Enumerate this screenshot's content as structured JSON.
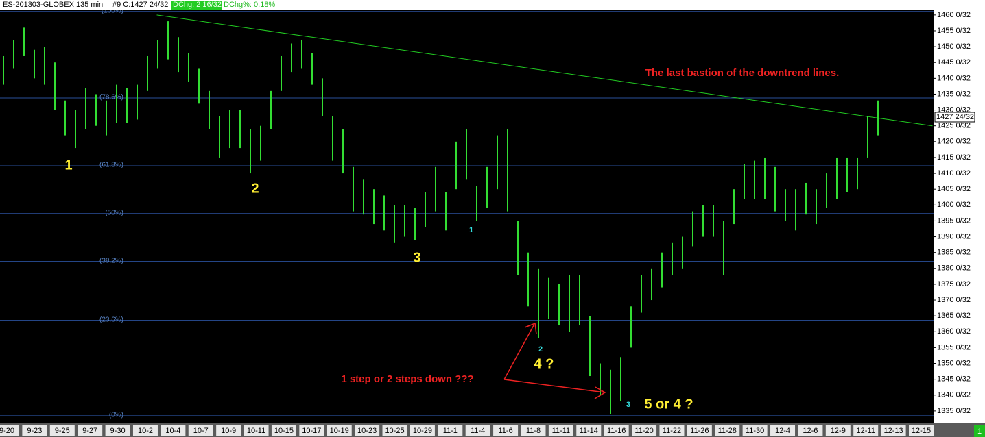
{
  "chart_data": {
    "type": "range",
    "header": {
      "symbol": "ES-201303-GLOBEX  135 min",
      "close": "#9 C:1427 24/32",
      "dchg": "DChg: 2 16/32",
      "dchg_pct": "DChg%: 0.18%"
    },
    "color": "#33dd33",
    "highs": [
      1447,
      1452,
      1456,
      1449,
      1450,
      1445,
      1433,
      1430,
      1437,
      1435,
      1433,
      1438,
      1437,
      1438,
      1447,
      1452,
      1458,
      1453,
      1448,
      1443,
      1436,
      1428,
      1430,
      1430,
      1424,
      1425,
      1436,
      1447,
      1451,
      1452,
      1448,
      1440,
      1428,
      1424,
      1412,
      1408,
      1405,
      1403,
      1400,
      1400,
      1399,
      1404,
      1412,
      1404,
      1420,
      1424,
      1406,
      1412,
      1422,
      1424,
      1395,
      1385,
      1380,
      1377,
      1375,
      1378,
      1378,
      1365,
      1350,
      1348,
      1352,
      1368,
      1378,
      1380,
      1385,
      1388,
      1390,
      1398,
      1400,
      1400,
      1395,
      1405,
      1413,
      1414,
      1415,
      1412,
      1405,
      1405,
      1407,
      1405,
      1410,
      1415,
      1415,
      1415,
      1428,
      1433
    ],
    "lows": [
      1438,
      1443,
      1447,
      1440,
      1438,
      1430,
      1422,
      1418,
      1424,
      1425,
      1422,
      1426,
      1426,
      1427,
      1436,
      1443,
      1446,
      1442,
      1439,
      1432,
      1424,
      1415,
      1418,
      1418,
      1410,
      1414,
      1424,
      1436,
      1442,
      1443,
      1438,
      1428,
      1414,
      1410,
      1398,
      1397,
      1394,
      1392,
      1388,
      1390,
      1389,
      1393,
      1398,
      1392,
      1405,
      1408,
      1395,
      1399,
      1405,
      1398,
      1378,
      1368,
      1358,
      1364,
      1362,
      1360,
      1362,
      1346,
      1340,
      1334,
      1338,
      1355,
      1366,
      1370,
      1374,
      1378,
      1380,
      1387,
      1390,
      1390,
      1378,
      1394,
      1402,
      1402,
      1402,
      1398,
      1395,
      1392,
      1397,
      1394,
      1399,
      1402,
      1404,
      1405,
      1415,
      1422
    ],
    "categories": [
      "9-20",
      "9-23",
      "9-25",
      "9-27",
      "9-30",
      "10-2",
      "10-4",
      "10-7",
      "10-9",
      "10-11",
      "10-15",
      "10-17",
      "10-19",
      "10-23",
      "10-25",
      "10-29",
      "11-1",
      "11-4",
      "11-6",
      "11-8",
      "11-11",
      "11-14",
      "11-16",
      "11-20",
      "11-22",
      "11-26",
      "11-28",
      "11-30",
      "12-4",
      "12-6",
      "12-9",
      "12-11",
      "12-13",
      "12-15"
    ],
    "ylim": [
      1331.3,
      1461.7
    ],
    "yticks": [
      {
        "value": 1335,
        "label": "1335 0/32"
      },
      {
        "value": 1340,
        "label": "1340 0/32"
      },
      {
        "value": 1345,
        "label": "1345 0/32"
      },
      {
        "value": 1350,
        "label": "1350 0/32"
      },
      {
        "value": 1355,
        "label": "1355 0/32"
      },
      {
        "value": 1360,
        "label": "1360 0/32"
      },
      {
        "value": 1365,
        "label": "1365 0/32"
      },
      {
        "value": 1370,
        "label": "1370 0/32"
      },
      {
        "value": 1375,
        "label": "1375 0/32"
      },
      {
        "value": 1380,
        "label": "1380 0/32"
      },
      {
        "value": 1385,
        "label": "1385 0/32"
      },
      {
        "value": 1390,
        "label": "1390 0/32"
      },
      {
        "value": 1395,
        "label": "1395 0/32"
      },
      {
        "value": 1400,
        "label": "1400 0/32"
      },
      {
        "value": 1405,
        "label": "1405 0/32"
      },
      {
        "value": 1410,
        "label": "1410 0/32"
      },
      {
        "value": 1415,
        "label": "1415 0/32"
      },
      {
        "value": 1420,
        "label": "1420 0/32"
      },
      {
        "value": 1425,
        "label": "1425 0/32"
      },
      {
        "value": 1430,
        "label": "1430 0/32"
      },
      {
        "value": 1435,
        "label": "1435 0/32"
      },
      {
        "value": 1440,
        "label": "1440 0/32"
      },
      {
        "value": 1445,
        "label": "1445 0/32"
      },
      {
        "value": 1450,
        "label": "1450 0/32"
      },
      {
        "value": 1455,
        "label": "1455 0/32"
      },
      {
        "value": 1460,
        "label": "1460 0/32"
      }
    ],
    "last_price": {
      "value": 1427.75,
      "label": "1427 24/32"
    },
    "fib_levels": [
      {
        "value": 1461.1,
        "label": "(100%)"
      },
      {
        "value": 1433.8,
        "label": "(78.6%)"
      },
      {
        "value": 1412.4,
        "label": "(61.8%)"
      },
      {
        "value": 1397.3,
        "label": "(50%)"
      },
      {
        "value": 1382.2,
        "label": "(38.2%)"
      },
      {
        "value": 1363.6,
        "label": "(23.6%)"
      },
      {
        "value": 1333.5,
        "label": "(0%)"
      }
    ],
    "fib_color": "#2a4f9a",
    "trendline": {
      "color": "#22cc22",
      "from": {
        "bar": 14.9,
        "value": 1460
      },
      "to": {
        "bar": 90.3,
        "value": 1425
      }
    },
    "annotations": {
      "wave1": "1",
      "wave2": "2",
      "wave3": "3",
      "wave4": "4 ?",
      "wave5": "5 or 4 ?",
      "sub1": "1",
      "sub2": "2",
      "sub3": "3",
      "bastion": "The last bastion of the downtrend lines.",
      "steps": "1 step or 2 steps down ???"
    },
    "page_indicator": "1"
  }
}
